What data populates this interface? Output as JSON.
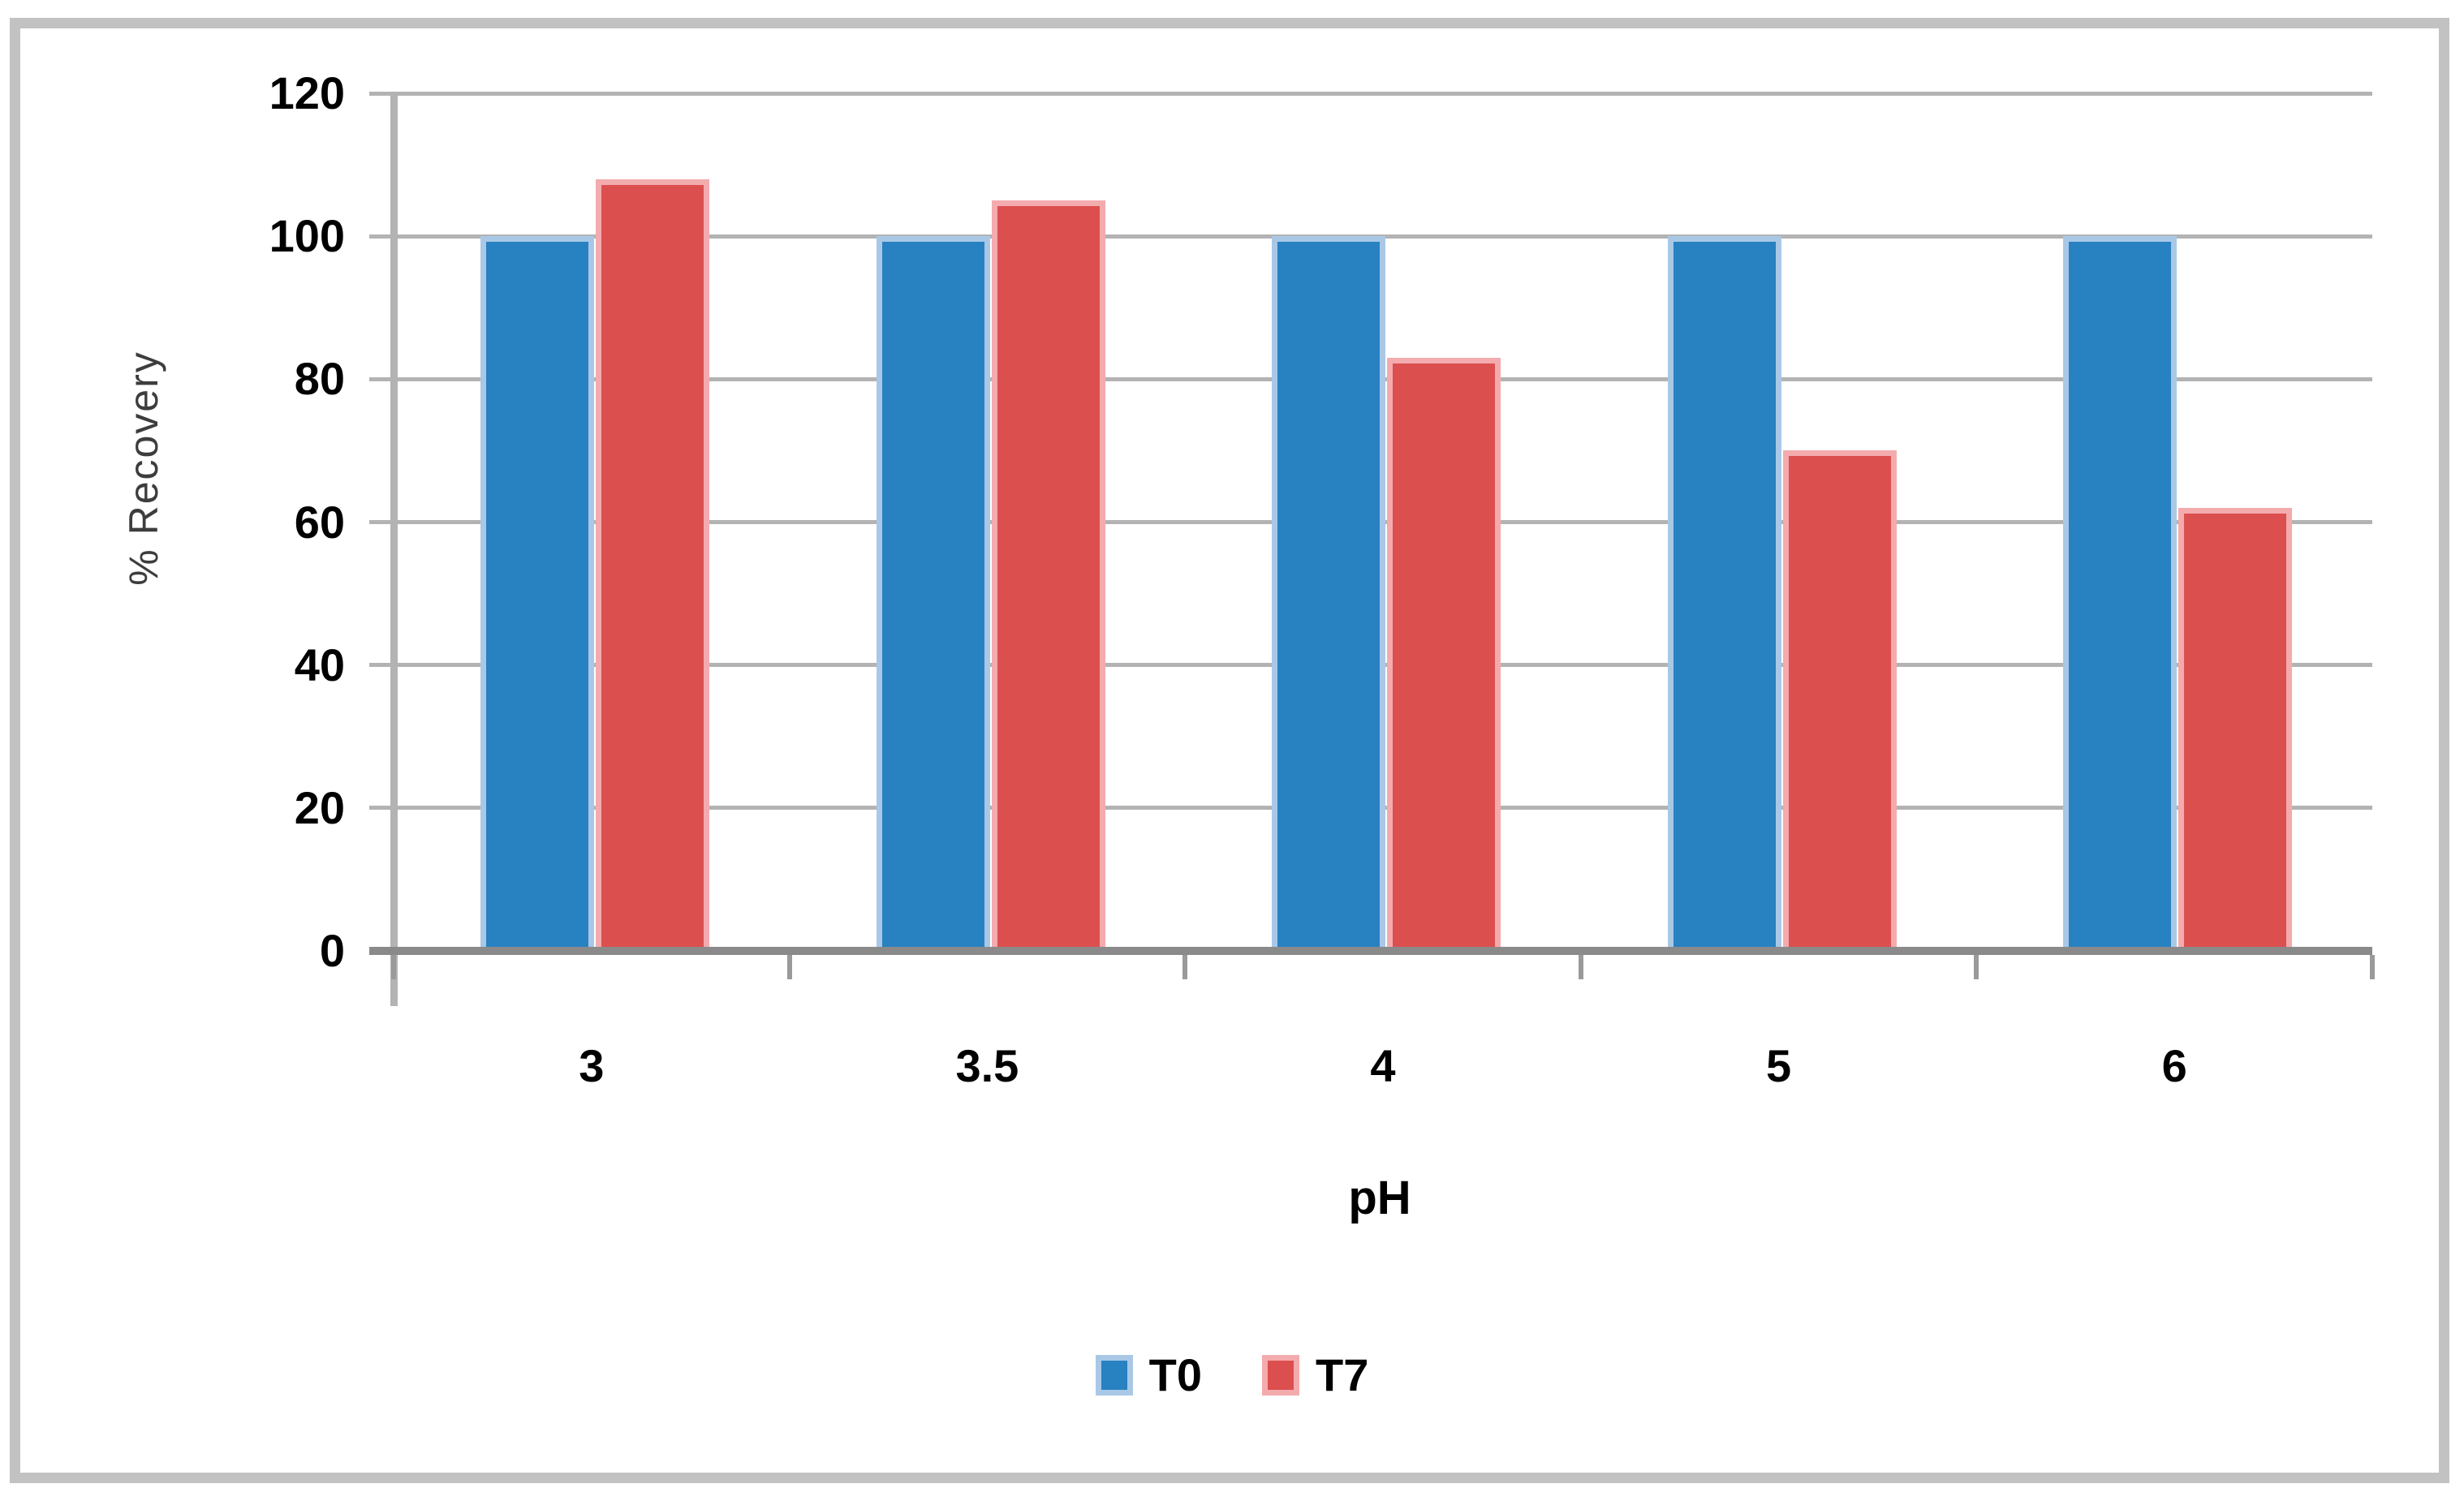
{
  "chart_data": {
    "type": "bar",
    "title": "",
    "categories": [
      "3",
      "3.5",
      "4",
      "5",
      "6"
    ],
    "series": [
      {
        "name": "T0",
        "color": "#2881C1",
        "edge_color": "#A9C8E6",
        "values": [
          100,
          100,
          100,
          100,
          100
        ]
      },
      {
        "name": "T7",
        "color": "#DC4F4F",
        "edge_color": "#F3ABAE",
        "values": [
          108,
          105,
          83,
          70,
          62
        ]
      }
    ],
    "xlabel": "pH",
    "ylabel": "% Recovery",
    "ylim": [
      0,
      120
    ],
    "yticks": [
      0,
      20,
      40,
      60,
      80,
      100,
      120
    ],
    "grid": true,
    "legend_position": "bottom"
  },
  "colors": {
    "gridline": "#b3b3b3",
    "axis_line": "#8a8a8a",
    "category_tick": "#9a9a9a",
    "frame_border": "#c2c2c2",
    "tick_label": "#000000",
    "axis_title": "#3d3d3d",
    "background": "#ffffff"
  }
}
